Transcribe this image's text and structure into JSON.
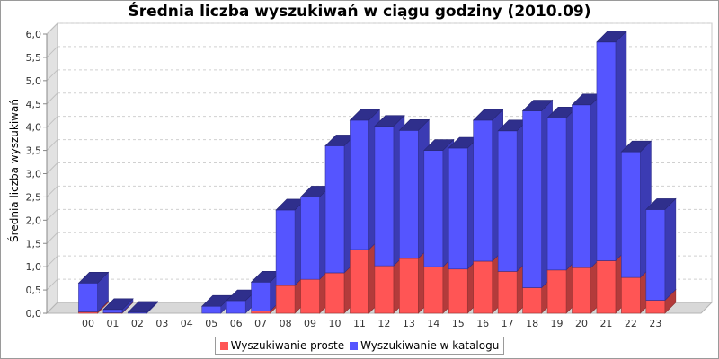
{
  "chart_data": {
    "type": "bar",
    "stacked": true,
    "three_d": true,
    "title": "Średnia liczba wyszukiwań w ciągu godziny (2010.09)",
    "xlabel": "",
    "ylabel": "Średnia liczba wyszukiwań",
    "ylim": [
      0,
      6.0
    ],
    "yticks": [
      "0,0",
      "0,5",
      "1,0",
      "1,5",
      "2,0",
      "2,5",
      "3,0",
      "3,5",
      "4,0",
      "4,5",
      "5,0",
      "5,5",
      "6,0"
    ],
    "categories": [
      "00",
      "01",
      "02",
      "03",
      "04",
      "05",
      "06",
      "07",
      "08",
      "09",
      "10",
      "11",
      "12",
      "13",
      "14",
      "15",
      "16",
      "17",
      "18",
      "19",
      "20",
      "21",
      "22",
      "23"
    ],
    "series": [
      {
        "name": "Wyszukiwanie proste",
        "color": "#ff5555",
        "values": [
          0.03,
          0.01,
          0.0,
          0.0,
          0.0,
          0.0,
          0.0,
          0.05,
          0.6,
          0.73,
          0.87,
          1.37,
          1.02,
          1.18,
          1.0,
          0.95,
          1.12,
          0.9,
          0.55,
          0.93,
          0.98,
          1.13,
          0.77,
          0.28
        ]
      },
      {
        "name": "Wyszukiwanie w katalogu",
        "color": "#5555ff",
        "values": [
          0.62,
          0.07,
          0.02,
          0.0,
          0.0,
          0.15,
          0.27,
          0.62,
          1.62,
          1.77,
          2.73,
          2.78,
          3.0,
          2.75,
          2.5,
          2.6,
          3.03,
          3.02,
          3.8,
          3.27,
          3.5,
          4.7,
          2.7,
          1.95
        ]
      }
    ],
    "grid": true,
    "legend_position": "bottom"
  }
}
